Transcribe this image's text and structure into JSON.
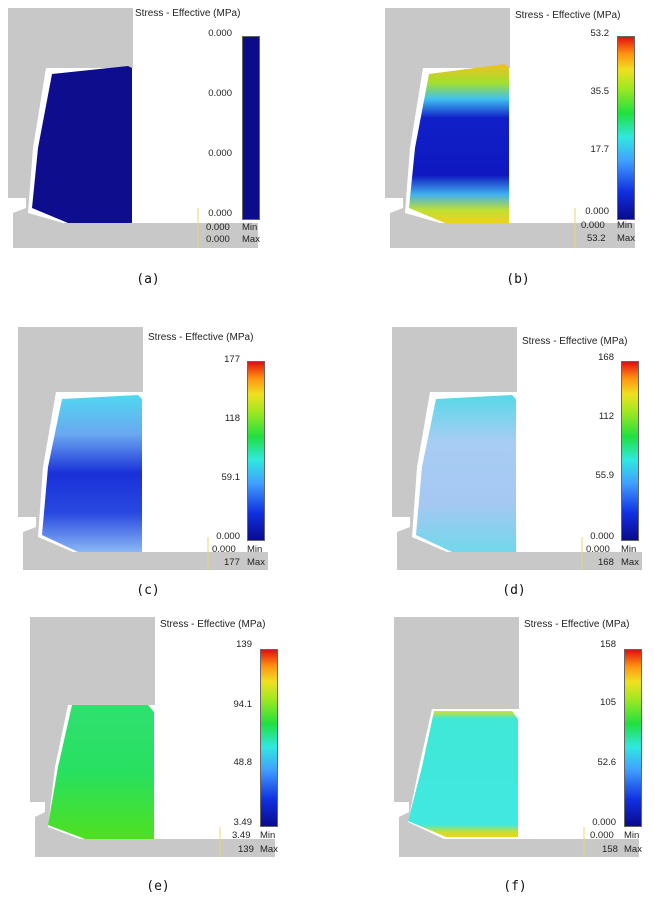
{
  "legend_title": "Stress - Effective (MPa)",
  "min_label": "Min",
  "max_label": "Max",
  "panels": [
    {
      "caption": "(a)",
      "ticks": [
        "0.000",
        "0.000",
        "0.000",
        "0.000"
      ],
      "min_value": "0.000",
      "max_value": "0.000",
      "colorbar": "uniform-dark-blue"
    },
    {
      "caption": "(b)",
      "ticks": [
        "53.2",
        "35.5",
        "17.7",
        "0.000"
      ],
      "min_value": "0.000",
      "max_value": "53.2",
      "colorbar": "rainbow"
    },
    {
      "caption": "(c)",
      "ticks": [
        "177",
        "118",
        "59.1",
        "0.000"
      ],
      "min_value": "0.000",
      "max_value": "177",
      "colorbar": "rainbow"
    },
    {
      "caption": "(d)",
      "ticks": [
        "168",
        "112",
        "55.9",
        "0.000"
      ],
      "min_value": "0.000",
      "max_value": "168",
      "colorbar": "rainbow"
    },
    {
      "caption": "(e)",
      "ticks": [
        "139",
        "94.1",
        "48.8",
        "3.49"
      ],
      "min_value": "3.49",
      "max_value": "139",
      "colorbar": "rainbow"
    },
    {
      "caption": "(f)",
      "ticks": [
        "158",
        "105",
        "52.6",
        "0.000"
      ],
      "min_value": "0.000",
      "max_value": "158",
      "colorbar": "rainbow"
    }
  ],
  "colors": {
    "die_gray": "#c8c8c8",
    "outline_gray": "#9a9a9a"
  }
}
